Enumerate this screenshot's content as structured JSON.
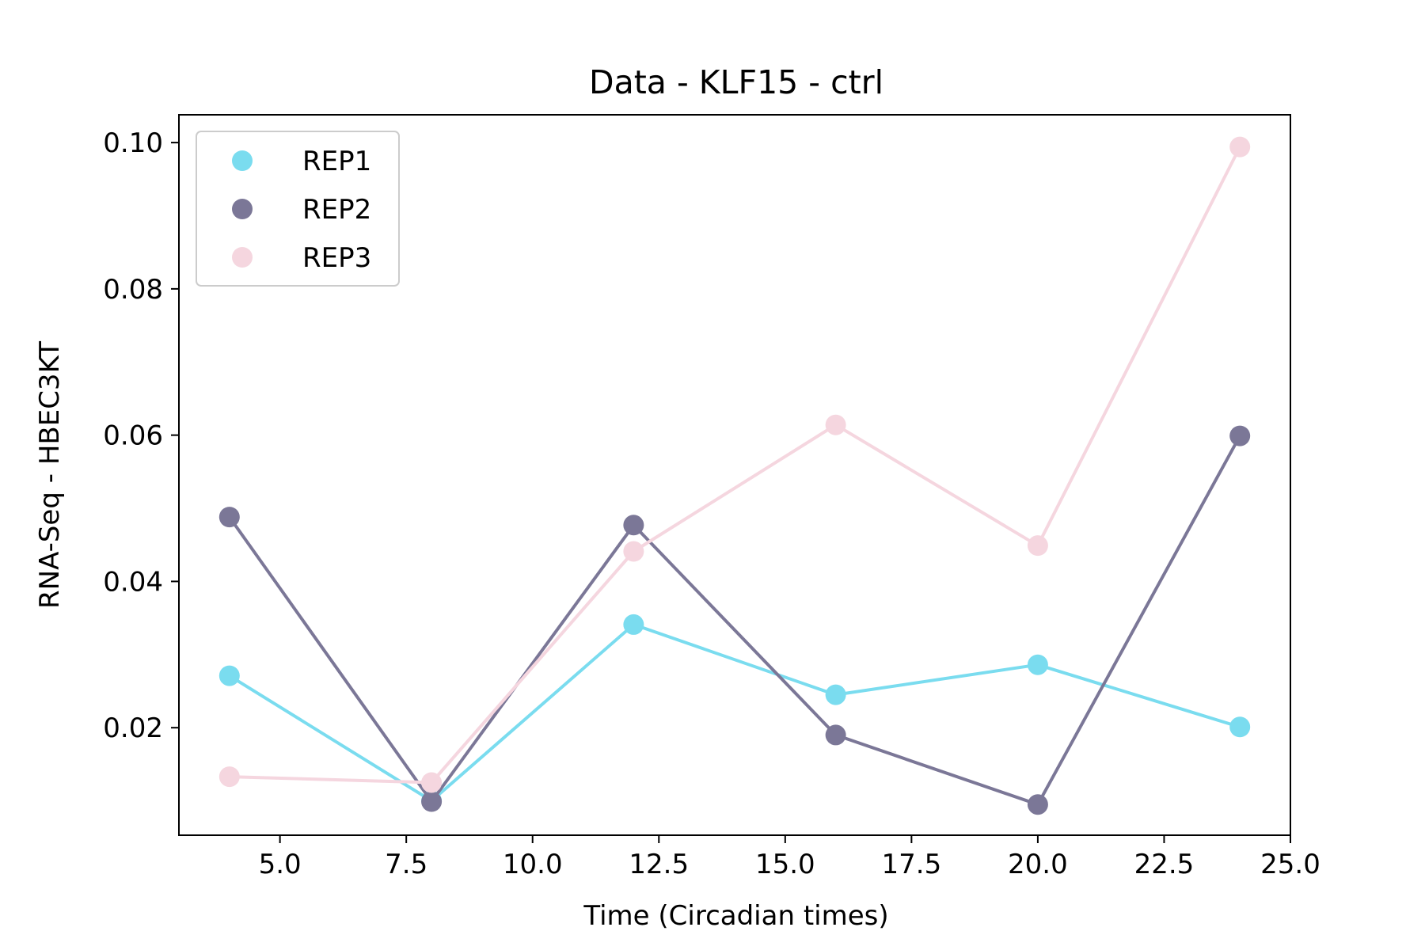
{
  "chart_data": {
    "type": "line",
    "title": "Data - KLF15 - ctrl",
    "xlabel": "Time (Circadian times)",
    "ylabel": "RNA-Seq - HBEC3KT",
    "x": [
      4,
      8,
      12,
      16,
      20,
      24
    ],
    "xlim": [
      3,
      25
    ],
    "ylim": [
      0.0053,
      0.1038
    ],
    "xticks": [
      5.0,
      7.5,
      10.0,
      12.5,
      15.0,
      17.5,
      20.0,
      22.5,
      25.0
    ],
    "xtick_labels": [
      "5.0",
      "7.5",
      "10.0",
      "12.5",
      "15.0",
      "17.5",
      "20.0",
      "22.5",
      "25.0"
    ],
    "yticks": [
      0.02,
      0.04,
      0.06,
      0.08,
      0.1
    ],
    "ytick_labels": [
      "0.02",
      "0.04",
      "0.06",
      "0.08",
      "0.10"
    ],
    "grid": false,
    "legend_position": "top-left",
    "series": [
      {
        "name": "REP1",
        "color": "#7adcef",
        "values": [
          0.0271,
          0.01,
          0.0341,
          0.0245,
          0.0286,
          0.0201
        ]
      },
      {
        "name": "REP2",
        "color": "#7b7797",
        "values": [
          0.0488,
          0.0099,
          0.0477,
          0.019,
          0.0095,
          0.0599
        ]
      },
      {
        "name": "REP3",
        "color": "#f5d6df",
        "values": [
          0.0133,
          0.0125,
          0.0441,
          0.0614,
          0.0449,
          0.0994
        ]
      }
    ]
  }
}
